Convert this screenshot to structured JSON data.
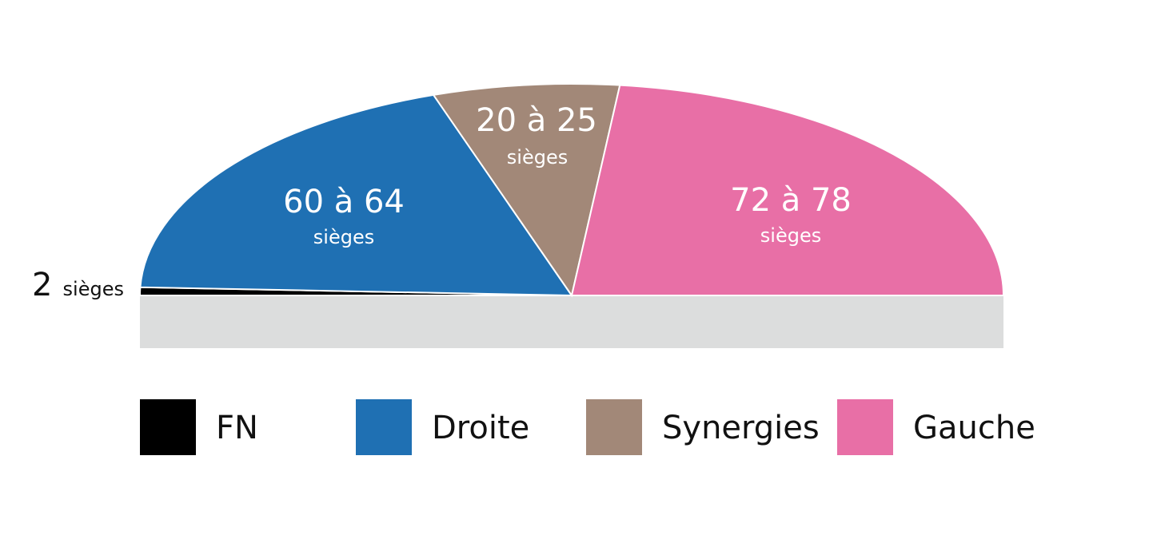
{
  "chart_data": {
    "type": "pie",
    "title": "",
    "categories": [
      "FN",
      "Droite",
      "Synergies",
      "Gauche"
    ],
    "values": [
      2,
      62,
      22.5,
      75
    ],
    "ranges": [
      null,
      [
        60,
        64
      ],
      [
        20,
        25
      ],
      [
        72,
        78
      ]
    ],
    "series": [
      {
        "name": "FN",
        "color": "#000000",
        "label_num": "2",
        "label_unit": "sièges"
      },
      {
        "name": "Droite",
        "color": "#1f70b3",
        "label_num": "60 à 64",
        "label_unit": "sièges"
      },
      {
        "name": "Synergies",
        "color": "#a28878",
        "label_num": "20 à 25",
        "label_unit": "sièges"
      },
      {
        "name": "Gauche",
        "color": "#e86fa6",
        "label_num": "72 à 78",
        "label_unit": "sièges"
      }
    ],
    "legend_position": "bottom",
    "base_color": "#dcdddd"
  }
}
